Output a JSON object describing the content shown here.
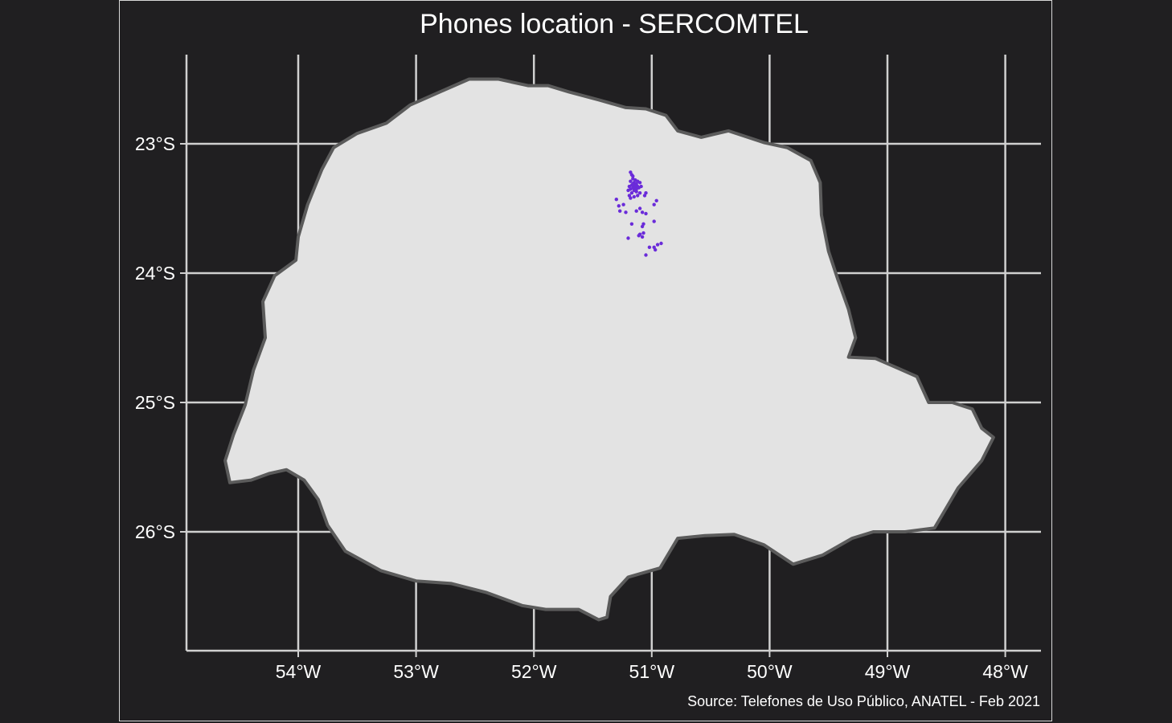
{
  "map": {
    "title": "Phones location - SERCOMTEL",
    "caption": "Source: Telefones de Uso Público, ANATEL - Feb 2021",
    "colors": {
      "background": "#201f21",
      "state_fill": "#e3e3e3",
      "state_border": "#5b5b5b",
      "grid": "#d0d0d0",
      "points": "#6a2bd9"
    },
    "lon_range": [
      -54.95,
      -47.7
    ],
    "lat_range": [
      -26.9,
      -22.3
    ],
    "x_ticks": [
      {
        "value": -54,
        "label": "54°W"
      },
      {
        "value": -53,
        "label": "53°W"
      },
      {
        "value": -52,
        "label": "52°W"
      },
      {
        "value": -51,
        "label": "51°W"
      },
      {
        "value": -50,
        "label": "50°W"
      },
      {
        "value": -49,
        "label": "49°W"
      },
      {
        "value": -48,
        "label": "48°W"
      }
    ],
    "y_ticks": [
      {
        "value": -23,
        "label": "23°S"
      },
      {
        "value": -24,
        "label": "24°S"
      },
      {
        "value": -25,
        "label": "25°S"
      },
      {
        "value": -26,
        "label": "26°S"
      }
    ],
    "state_outline": [
      [
        -51.7,
        -22.6
      ],
      [
        -51.45,
        -22.66
      ],
      [
        -51.22,
        -22.72
      ],
      [
        -51.05,
        -22.73
      ],
      [
        -50.88,
        -22.78
      ],
      [
        -50.78,
        -22.9
      ],
      [
        -50.58,
        -22.95
      ],
      [
        -50.35,
        -22.9
      ],
      [
        -50.05,
        -22.99
      ],
      [
        -49.85,
        -23.03
      ],
      [
        -49.65,
        -23.13
      ],
      [
        -49.57,
        -23.3
      ],
      [
        -49.56,
        -23.55
      ],
      [
        -49.5,
        -23.83
      ],
      [
        -49.42,
        -24.05
      ],
      [
        -49.33,
        -24.28
      ],
      [
        -49.27,
        -24.5
      ],
      [
        -49.33,
        -24.65
      ],
      [
        -49.1,
        -24.66
      ],
      [
        -48.9,
        -24.74
      ],
      [
        -48.75,
        -24.8
      ],
      [
        -48.65,
        -25.0
      ],
      [
        -48.45,
        -25.0
      ],
      [
        -48.28,
        -25.05
      ],
      [
        -48.2,
        -25.2
      ],
      [
        -48.1,
        -25.27
      ],
      [
        -48.2,
        -25.45
      ],
      [
        -48.4,
        -25.66
      ],
      [
        -48.6,
        -25.97
      ],
      [
        -48.85,
        -26.0
      ],
      [
        -49.12,
        -26.0
      ],
      [
        -49.3,
        -26.05
      ],
      [
        -49.55,
        -26.18
      ],
      [
        -49.8,
        -26.25
      ],
      [
        -50.05,
        -26.1
      ],
      [
        -50.3,
        -26.02
      ],
      [
        -50.55,
        -26.03
      ],
      [
        -50.78,
        -26.05
      ],
      [
        -50.93,
        -26.28
      ],
      [
        -51.2,
        -26.35
      ],
      [
        -51.35,
        -26.5
      ],
      [
        -51.38,
        -26.66
      ],
      [
        -51.45,
        -26.68
      ],
      [
        -51.62,
        -26.6
      ],
      [
        -51.9,
        -26.6
      ],
      [
        -52.1,
        -26.57
      ],
      [
        -52.4,
        -26.47
      ],
      [
        -52.7,
        -26.4
      ],
      [
        -53.0,
        -26.38
      ],
      [
        -53.3,
        -26.3
      ],
      [
        -53.6,
        -26.15
      ],
      [
        -53.75,
        -25.95
      ],
      [
        -53.83,
        -25.75
      ],
      [
        -53.95,
        -25.6
      ],
      [
        -54.1,
        -25.52
      ],
      [
        -54.25,
        -25.55
      ],
      [
        -54.4,
        -25.6
      ],
      [
        -54.58,
        -25.62
      ],
      [
        -54.62,
        -25.45
      ],
      [
        -54.55,
        -25.25
      ],
      [
        -54.45,
        -25.02
      ],
      [
        -54.38,
        -24.75
      ],
      [
        -54.28,
        -24.5
      ],
      [
        -54.3,
        -24.22
      ],
      [
        -54.2,
        -24.02
      ],
      [
        -54.02,
        -23.9
      ],
      [
        -54.0,
        -23.72
      ],
      [
        -53.92,
        -23.47
      ],
      [
        -53.8,
        -23.2
      ],
      [
        -53.7,
        -23.03
      ],
      [
        -53.5,
        -22.92
      ],
      [
        -53.25,
        -22.84
      ],
      [
        -53.05,
        -22.7
      ],
      [
        -52.8,
        -22.6
      ],
      [
        -52.55,
        -22.5
      ],
      [
        -52.3,
        -22.5
      ],
      [
        -52.05,
        -22.55
      ],
      [
        -51.88,
        -22.55
      ],
      [
        -51.7,
        -22.6
      ]
    ],
    "phone_points": [
      [
        -51.17,
        -23.32
      ],
      [
        -51.15,
        -23.3
      ],
      [
        -51.13,
        -23.31
      ],
      [
        -51.16,
        -23.34
      ],
      [
        -51.14,
        -23.35
      ],
      [
        -51.18,
        -23.29
      ],
      [
        -51.12,
        -23.33
      ],
      [
        -51.15,
        -23.36
      ],
      [
        -51.17,
        -23.38
      ],
      [
        -51.13,
        -23.37
      ],
      [
        -51.11,
        -23.34
      ],
      [
        -51.19,
        -23.33
      ],
      [
        -51.16,
        -23.27
      ],
      [
        -51.14,
        -23.28
      ],
      [
        -51.12,
        -23.29
      ],
      [
        -51.18,
        -23.35
      ],
      [
        -51.15,
        -23.32
      ],
      [
        -51.16,
        -23.31
      ],
      [
        -51.14,
        -23.33
      ],
      [
        -51.13,
        -23.35
      ],
      [
        -51.17,
        -23.24
      ],
      [
        -51.18,
        -23.22
      ],
      [
        -51.16,
        -23.25
      ],
      [
        -51.1,
        -23.3
      ],
      [
        -51.09,
        -23.33
      ],
      [
        -51.2,
        -23.36
      ],
      [
        -51.19,
        -23.4
      ],
      [
        -51.15,
        -23.41
      ],
      [
        -51.12,
        -23.4
      ],
      [
        -51.1,
        -23.38
      ],
      [
        -51.18,
        -23.42
      ],
      [
        -51.05,
        -23.38
      ],
      [
        -51.06,
        -23.4
      ],
      [
        -51.3,
        -23.43
      ],
      [
        -51.28,
        -23.48
      ],
      [
        -51.24,
        -23.47
      ],
      [
        -50.96,
        -23.44
      ],
      [
        -50.98,
        -23.47
      ],
      [
        -51.27,
        -23.52
      ],
      [
        -51.22,
        -23.53
      ],
      [
        -51.13,
        -23.52
      ],
      [
        -51.08,
        -23.53
      ],
      [
        -51.05,
        -23.54
      ],
      [
        -51.1,
        -23.5
      ],
      [
        -51.17,
        -23.62
      ],
      [
        -51.08,
        -23.64
      ],
      [
        -50.98,
        -23.6
      ],
      [
        -51.1,
        -23.7
      ],
      [
        -51.08,
        -23.72
      ],
      [
        -51.11,
        -23.71
      ],
      [
        -51.07,
        -23.69
      ],
      [
        -51.2,
        -23.73
      ],
      [
        -50.95,
        -23.78
      ],
      [
        -50.92,
        -23.77
      ],
      [
        -50.98,
        -23.8
      ],
      [
        -51.02,
        -23.8
      ],
      [
        -51.05,
        -23.86
      ],
      [
        -50.97,
        -23.82
      ],
      [
        -51.07,
        -23.62
      ]
    ]
  }
}
